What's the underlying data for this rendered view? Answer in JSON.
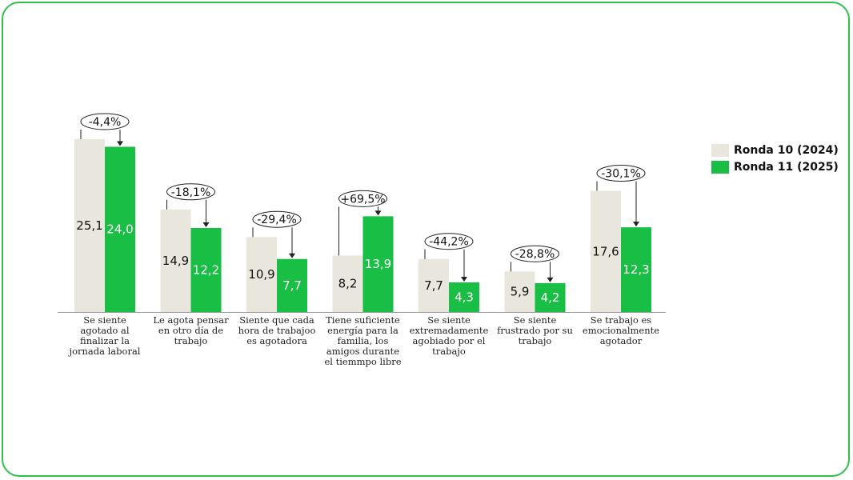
{
  "chart_data": {
    "type": "bar",
    "categories": [
      "Se siente agotado al finalizar la jornada laboral",
      "Le agota pensar en otro día de trabajo",
      "Siente que cada hora de trabajoo es agotadora",
      "Tiene suficiente energía para la familia, los amigos durante el tiemmpo libre",
      "Se siente extremadamente agobiado por el trabajo",
      "Se siente frustrado por su trabajo",
      "Se trabajo es emocionalmente agotador"
    ],
    "series": [
      {
        "name": "Ronda 10 (2024)",
        "values": [
          25.1,
          14.9,
          10.9,
          8.2,
          7.7,
          5.9,
          17.6
        ],
        "labels": [
          "25,1",
          "14,9",
          "10,9",
          "8,2",
          "7,7",
          "5,9",
          "17,6"
        ],
        "color": "#e9e7dd"
      },
      {
        "name": "Ronda 11 (2025)",
        "values": [
          24.0,
          12.2,
          7.7,
          13.9,
          4.3,
          4.2,
          12.3
        ],
        "labels": [
          "24,0",
          "12,2",
          "7,7",
          "13,9",
          "4,3",
          "4,2",
          "12,3"
        ],
        "color": "#19bf45"
      }
    ],
    "changes": [
      "-4,4%",
      "-18,1%",
      "-29,4%",
      "+69,5%",
      "-44,2%",
      "-28,8%",
      "-30,1%"
    ],
    "ylim": [
      0,
      25.1
    ],
    "grid": false,
    "legend": "right",
    "title": "",
    "xlabel": "",
    "ylabel": ""
  }
}
